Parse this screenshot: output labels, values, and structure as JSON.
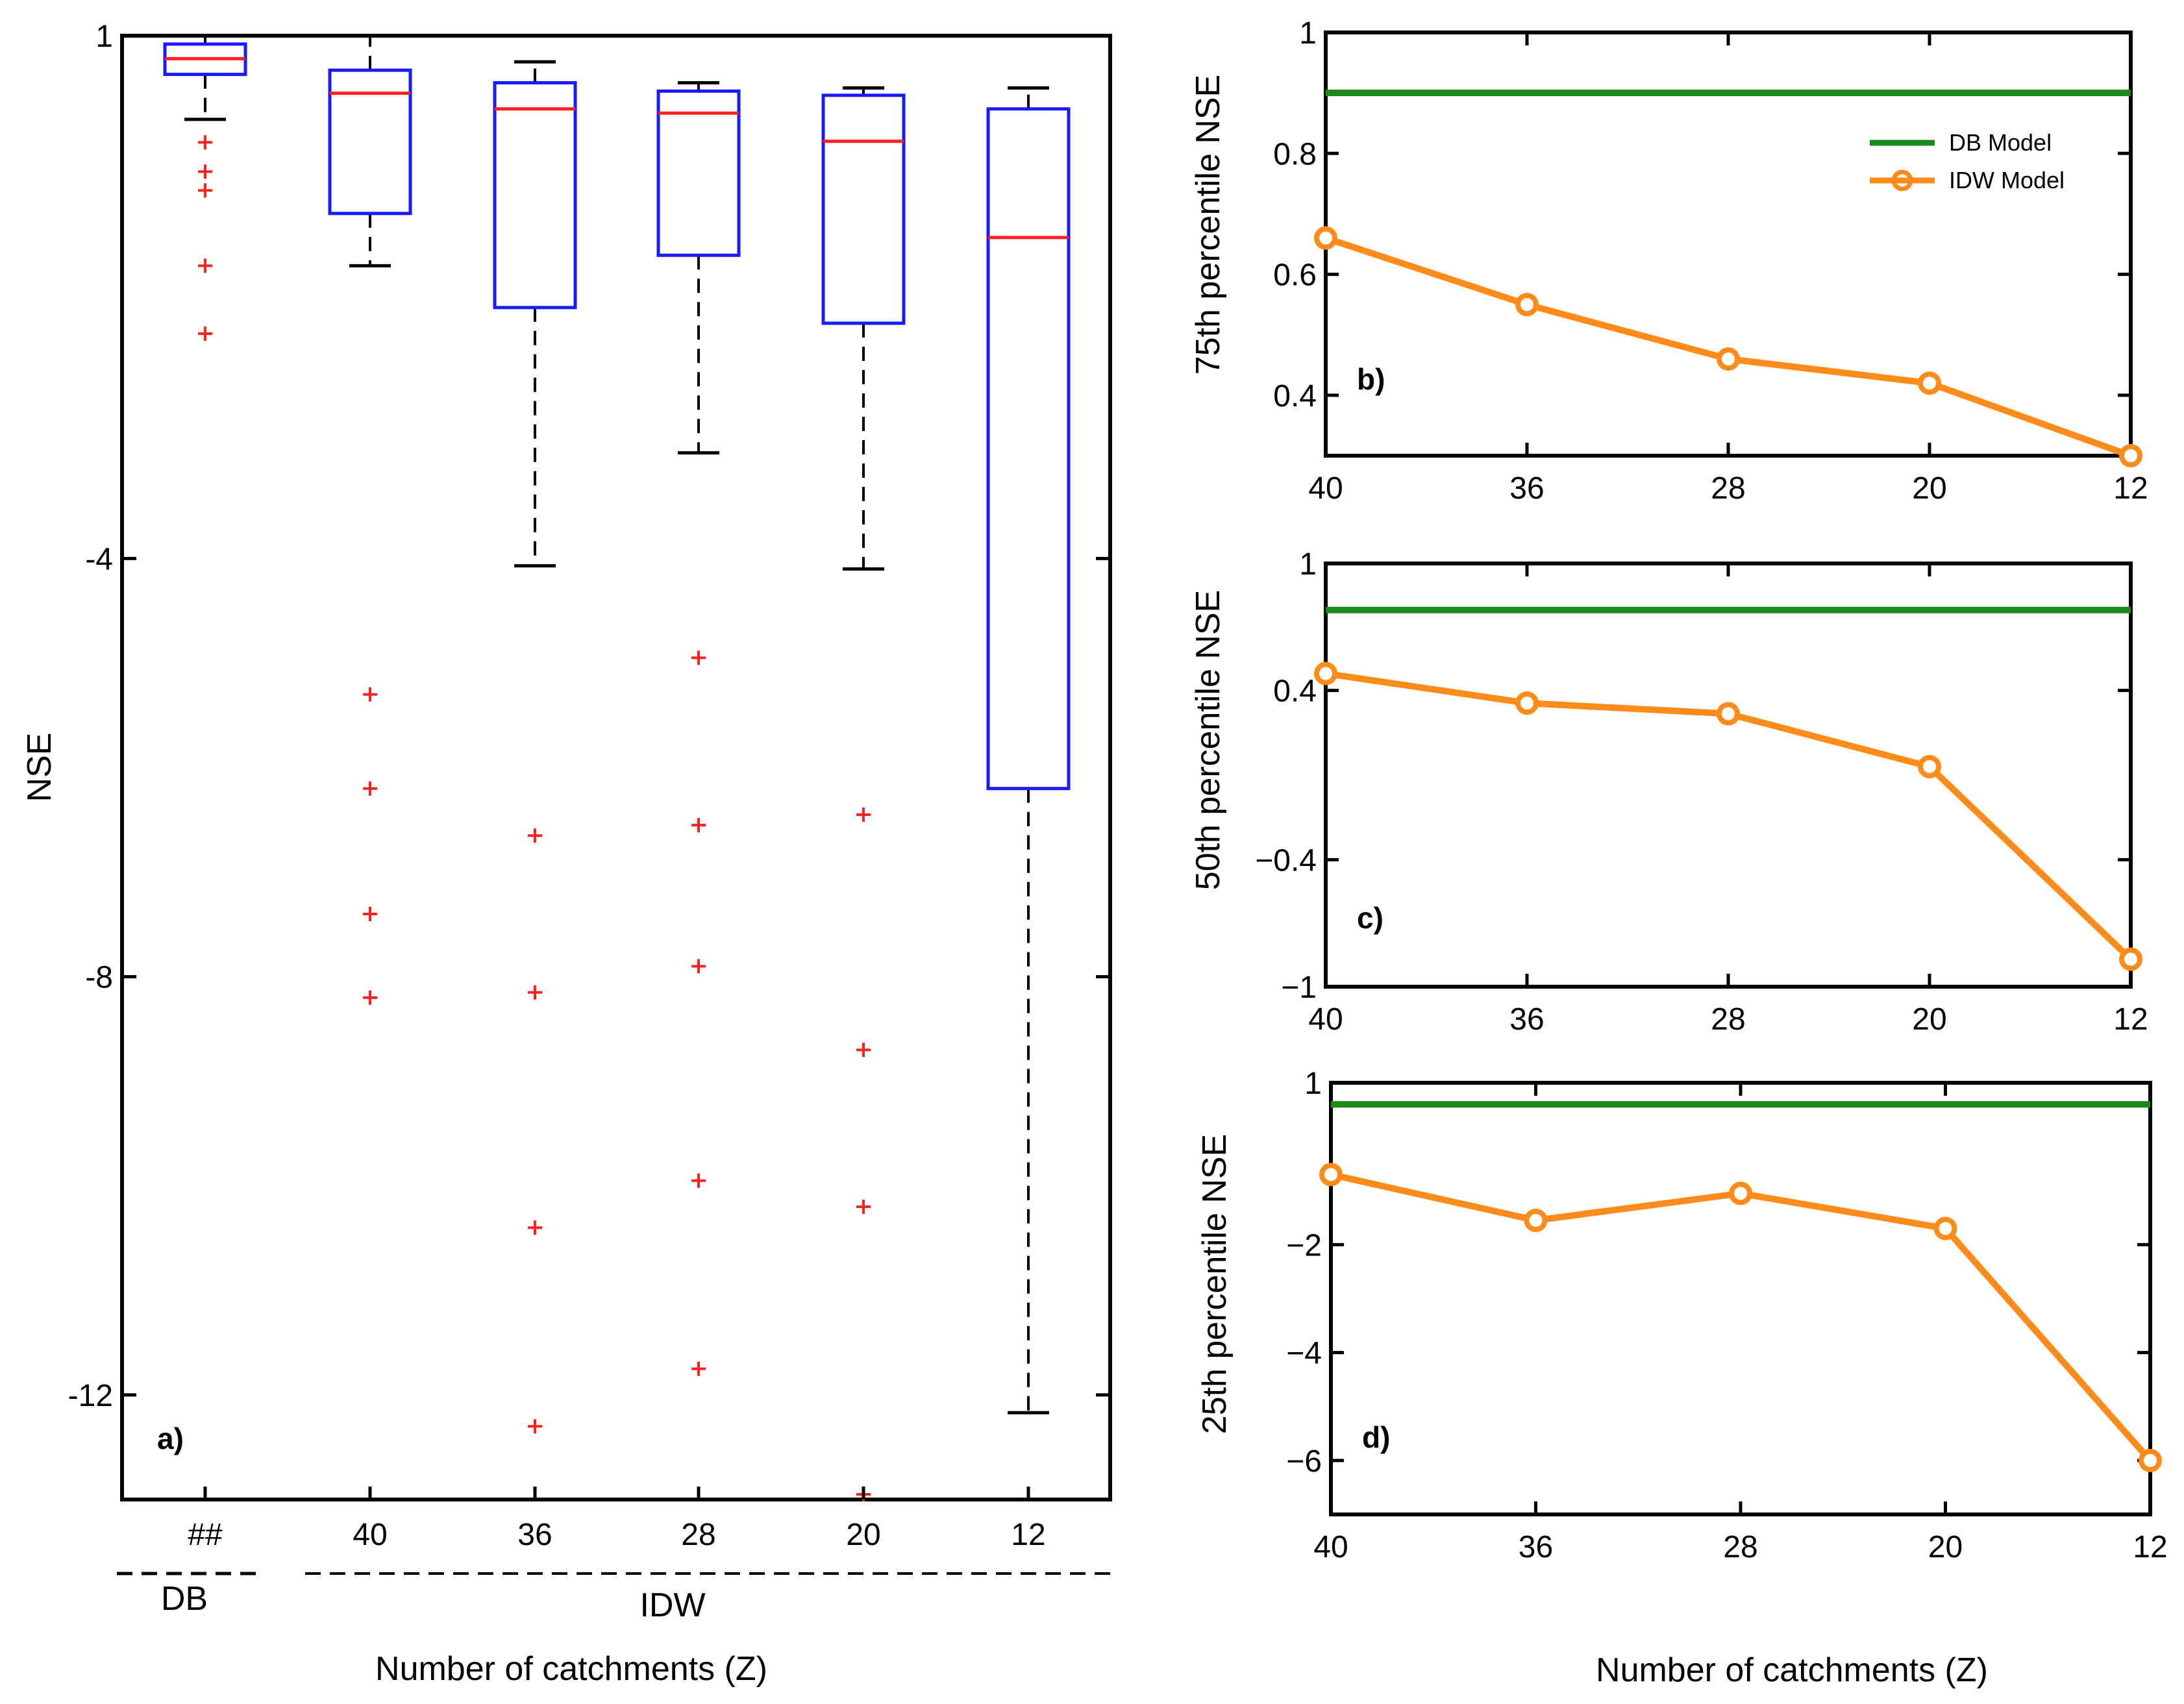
{
  "figure": {
    "xlabel_left": "Number of catchments (Z)",
    "xlabel_right": "Number of catchments (Z)",
    "group_db": "DB",
    "group_idw": "IDW",
    "colors": {
      "box": "#1a1aff",
      "median": "#ff2020",
      "outlier": "#ff2020",
      "db_line": "#1a8a1a",
      "idw_line": "#ff8c1a",
      "whisker": "#000000"
    }
  },
  "chart_data": [
    {
      "id": "a",
      "type": "box",
      "panel_label": "a)",
      "ylabel": "NSE",
      "ylim": [
        -13.0,
        1.0
      ],
      "yticks": [
        1,
        -4,
        -8,
        -12
      ],
      "ytick_labels": [
        "1",
        "-4",
        "-8",
        "-12"
      ],
      "categories": [
        "##",
        "40",
        "36",
        "28",
        "20",
        "12"
      ],
      "boxes": [
        {
          "label": "##",
          "q1": 0.63,
          "median": 0.78,
          "q3": 0.92,
          "whisker_low": 0.2,
          "whisker_high": 1.0,
          "outliers": [
            -0.02,
            -0.3,
            -0.48,
            -1.2,
            -1.85
          ]
        },
        {
          "label": "40",
          "q1": -0.7,
          "median": 0.45,
          "q3": 0.67,
          "whisker_low": -1.2,
          "whisker_high": 1.0,
          "outliers": [
            -5.3,
            -6.2,
            -7.4,
            -8.2
          ]
        },
        {
          "label": "36",
          "q1": -1.6,
          "median": 0.3,
          "q3": 0.55,
          "whisker_low": -4.07,
          "whisker_high": 0.75,
          "outliers": [
            -6.65,
            -8.15,
            -10.4,
            -12.3
          ]
        },
        {
          "label": "28",
          "q1": -1.1,
          "median": 0.26,
          "q3": 0.47,
          "whisker_low": -2.99,
          "whisker_high": 0.55,
          "outliers": [
            -4.95,
            -6.55,
            -7.9,
            -9.95,
            -11.75
          ]
        },
        {
          "label": "20",
          "q1": -1.75,
          "median": -0.01,
          "q3": 0.43,
          "whisker_low": -4.1,
          "whisker_high": 0.5,
          "outliers": [
            -6.45,
            -8.7,
            -10.2,
            -12.95
          ]
        },
        {
          "label": "12",
          "q1": -6.2,
          "median": -0.93,
          "q3": 0.3,
          "whisker_low": -12.17,
          "whisker_high": 0.5,
          "outliers": []
        }
      ]
    },
    {
      "id": "b",
      "type": "line",
      "panel_label": "b)",
      "ylabel": "75th percentile NSE",
      "x": [
        "40",
        "36",
        "28",
        "20",
        "12"
      ],
      "ylim": [
        0.3,
        1.0
      ],
      "yticks": [
        1,
        0.8,
        0.6,
        0.4
      ],
      "ytick_labels": [
        "1",
        "0.8",
        "0.6",
        "0.4"
      ],
      "legend": {
        "position": "top-right",
        "entries": [
          "DB Model",
          "IDW Model"
        ]
      },
      "series": [
        {
          "name": "DB Model",
          "values": [
            0.9,
            0.9,
            0.9,
            0.9,
            0.9
          ],
          "marker": "none"
        },
        {
          "name": "IDW Model",
          "values": [
            0.66,
            0.55,
            0.46,
            0.42,
            0.3
          ],
          "marker": "circle"
        }
      ]
    },
    {
      "id": "c",
      "type": "line",
      "panel_label": "c)",
      "ylabel": "50th percentile NSE",
      "x": [
        "40",
        "36",
        "28",
        "20",
        "12"
      ],
      "ylim": [
        -1.0,
        1.0
      ],
      "yticks": [
        1,
        0.4,
        -0.4,
        -1
      ],
      "ytick_labels": [
        "1",
        "0.4",
        "−0.4",
        "−1"
      ],
      "series": [
        {
          "name": "DB Model",
          "values": [
            0.78,
            0.78,
            0.78,
            0.78,
            0.78
          ],
          "marker": "none"
        },
        {
          "name": "IDW Model",
          "values": [
            0.48,
            0.34,
            0.29,
            0.04,
            -0.87
          ],
          "marker": "circle"
        }
      ]
    },
    {
      "id": "d",
      "type": "line",
      "panel_label": "d)",
      "ylabel": "25th percentile NSE",
      "x": [
        "40",
        "36",
        "28",
        "20",
        "12"
      ],
      "ylim": [
        -7.0,
        1.0
      ],
      "yticks": [
        1,
        -2,
        -4,
        -6
      ],
      "ytick_labels": [
        "1",
        "−2",
        "−4",
        "−6"
      ],
      "series": [
        {
          "name": "DB Model",
          "values": [
            0.6,
            0.6,
            0.6,
            0.6,
            0.6
          ],
          "marker": "none"
        },
        {
          "name": "IDW Model",
          "values": [
            -0.7,
            -1.55,
            -1.05,
            -1.7,
            -6.0
          ],
          "marker": "circle"
        }
      ]
    }
  ]
}
